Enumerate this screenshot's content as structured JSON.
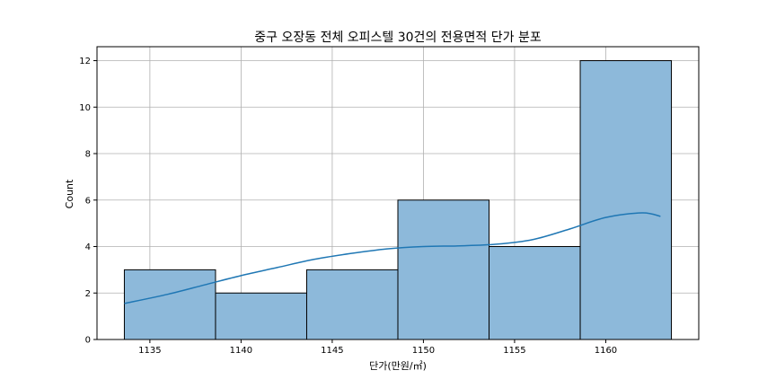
{
  "chart_data": {
    "type": "bar",
    "title": "중구 오장동 전체 오피스텔 30건의 전용면적 단가 분포",
    "xlabel": "단가(만원/㎡)",
    "ylabel": "Count",
    "bins": [
      {
        "start": 1133.6,
        "end": 1138.6,
        "count": 3
      },
      {
        "start": 1138.6,
        "end": 1143.6,
        "count": 2
      },
      {
        "start": 1143.6,
        "end": 1148.6,
        "count": 3
      },
      {
        "start": 1148.6,
        "end": 1153.6,
        "count": 6
      },
      {
        "start": 1153.6,
        "end": 1158.6,
        "count": 4
      },
      {
        "start": 1158.6,
        "end": 1163.6,
        "count": 12
      }
    ],
    "kde": {
      "x": [
        1133.6,
        1136,
        1138,
        1140,
        1142,
        1144,
        1146,
        1148,
        1150,
        1152,
        1154,
        1156,
        1158,
        1160,
        1162,
        1163
      ],
      "y": [
        1.55,
        1.95,
        2.35,
        2.75,
        3.1,
        3.45,
        3.7,
        3.9,
        4.0,
        4.03,
        4.1,
        4.3,
        4.75,
        5.25,
        5.45,
        5.3
      ]
    },
    "xticks": [
      1135,
      1140,
      1145,
      1150,
      1155,
      1160
    ],
    "yticks": [
      0,
      2,
      4,
      6,
      8,
      10,
      12
    ],
    "xlim": [
      1132.1,
      1165.1
    ],
    "ylim": [
      0,
      12.6
    ],
    "grid": true,
    "bar_color": "#8db9da",
    "bar_edge_color": "#000000",
    "kde_color": "#1f77b4"
  }
}
